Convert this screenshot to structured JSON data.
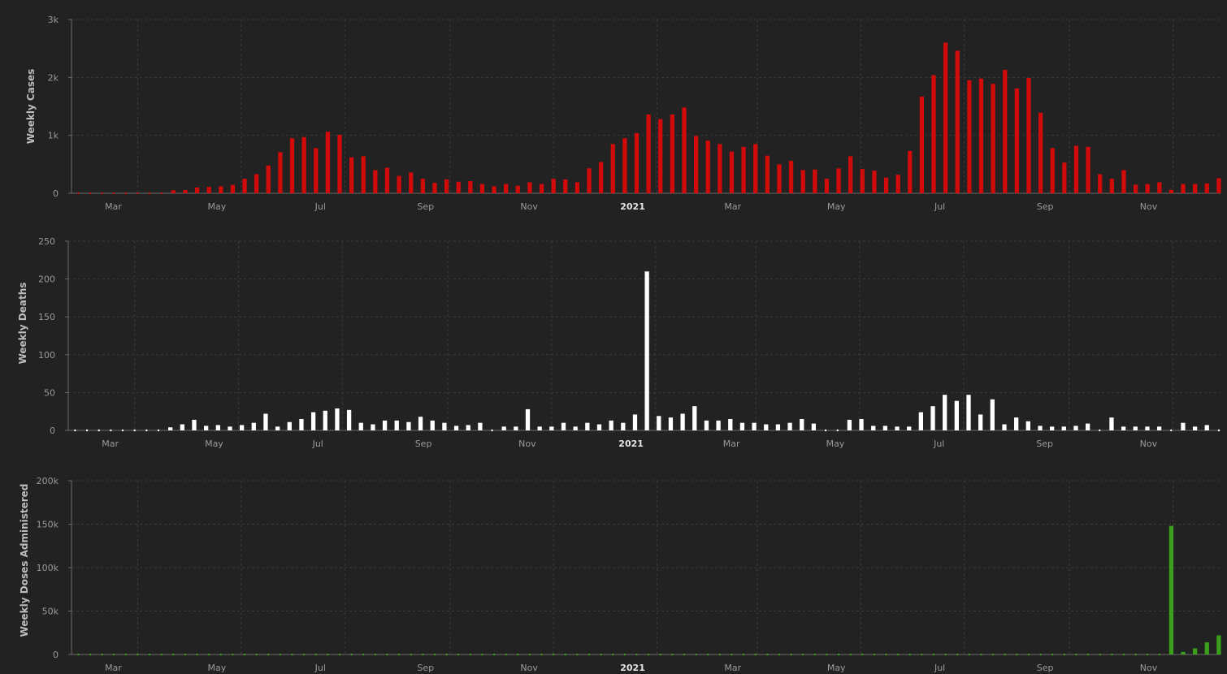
{
  "chart_data": [
    {
      "type": "bar",
      "ylabel": "Weekly Cases",
      "ylim": [
        0,
        3000
      ],
      "yticks": [
        0,
        1000,
        2000,
        3000
      ],
      "ytick_labels": [
        "0",
        "1k",
        "2k",
        "3k"
      ],
      "color": "#d10a0a",
      "grid": true,
      "x_start": "2020-01-26",
      "x_step_days": 7,
      "xticks": [
        {
          "date": "2020-03-01",
          "label": "Mar"
        },
        {
          "date": "2020-05-01",
          "label": "May"
        },
        {
          "date": "2020-07-01",
          "label": "Jul"
        },
        {
          "date": "2020-09-01",
          "label": "Sep"
        },
        {
          "date": "2020-11-01",
          "label": "Nov"
        },
        {
          "date": "2021-01-01",
          "label": "2021",
          "bold": true
        },
        {
          "date": "2021-03-01",
          "label": "Mar"
        },
        {
          "date": "2021-05-01",
          "label": "May"
        },
        {
          "date": "2021-07-01",
          "label": "Jul"
        },
        {
          "date": "2021-09-01",
          "label": "Sep"
        },
        {
          "date": "2021-11-01",
          "label": "Nov"
        }
      ],
      "values": [
        0,
        0,
        0,
        0,
        0,
        0,
        0,
        0,
        50,
        55,
        100,
        110,
        120,
        145,
        250,
        330,
        480,
        710,
        950,
        970,
        780,
        1060,
        1010,
        620,
        640,
        400,
        440,
        300,
        360,
        250,
        180,
        240,
        200,
        210,
        160,
        120,
        160,
        130,
        190,
        160,
        250,
        240,
        190,
        430,
        540,
        850,
        950,
        1040,
        1360,
        1280,
        1360,
        1480,
        990,
        910,
        850,
        720,
        800,
        850,
        650,
        500,
        560,
        400,
        410,
        250,
        430,
        640,
        420,
        390,
        270,
        320,
        730,
        1670,
        2040,
        2600,
        2460,
        1950,
        1980,
        1890,
        2130,
        1810,
        1990,
        1390,
        780,
        530,
        820,
        800,
        330,
        250,
        400,
        150,
        160,
        190,
        60,
        160,
        160,
        170,
        260
      ]
    },
    {
      "type": "bar",
      "ylabel": "Weekly Deaths",
      "ylim": [
        0,
        250
      ],
      "yticks": [
        0,
        50,
        100,
        150,
        200,
        250
      ],
      "ytick_labels": [
        "0",
        "50",
        "100",
        "150",
        "200",
        "250"
      ],
      "color": "#ffffff",
      "grid": true,
      "x_start": "2020-01-26",
      "x_step_days": 7,
      "xticks": [
        {
          "date": "2020-03-01",
          "label": "Mar"
        },
        {
          "date": "2020-05-01",
          "label": "May"
        },
        {
          "date": "2020-07-01",
          "label": "Jul"
        },
        {
          "date": "2020-09-01",
          "label": "Sep"
        },
        {
          "date": "2020-11-01",
          "label": "Nov"
        },
        {
          "date": "2021-01-01",
          "label": "2021",
          "bold": true
        },
        {
          "date": "2021-03-01",
          "label": "Mar"
        },
        {
          "date": "2021-05-01",
          "label": "May"
        },
        {
          "date": "2021-07-01",
          "label": "Jul"
        },
        {
          "date": "2021-09-01",
          "label": "Sep"
        },
        {
          "date": "2021-11-01",
          "label": "Nov"
        }
      ],
      "values": [
        0,
        0,
        0,
        0,
        0,
        0,
        0,
        0,
        4,
        8,
        14,
        6,
        7,
        5,
        7,
        10,
        22,
        5,
        11,
        15,
        24,
        26,
        29,
        27,
        10,
        8,
        13,
        13,
        11,
        18,
        13,
        10,
        6,
        7,
        10,
        0,
        5,
        5,
        28,
        5,
        5,
        10,
        5,
        10,
        8,
        13,
        10,
        21,
        210,
        19,
        17,
        22,
        32,
        13,
        13,
        15,
        10,
        10,
        8,
        8,
        10,
        15,
        9,
        0,
        0,
        14,
        15,
        6,
        6,
        5,
        5,
        24,
        32,
        47,
        39,
        47,
        21,
        41,
        8,
        17,
        12,
        6,
        5,
        5,
        6,
        9,
        0,
        17,
        5,
        5,
        5,
        5,
        0,
        10,
        5,
        7,
        0
      ]
    },
    {
      "type": "bar",
      "ylabel": "Weekly Doses Administered",
      "ylim": [
        0,
        200000
      ],
      "yticks": [
        0,
        50000,
        100000,
        150000,
        200000
      ],
      "ytick_labels": [
        "0",
        "50k",
        "100k",
        "150k",
        "200k"
      ],
      "color": "#3aa01c",
      "grid": true,
      "x_start": "2020-01-26",
      "x_step_days": 7,
      "xticks": [
        {
          "date": "2020-03-01",
          "label": "Mar"
        },
        {
          "date": "2020-05-01",
          "label": "May"
        },
        {
          "date": "2020-07-01",
          "label": "Jul"
        },
        {
          "date": "2020-09-01",
          "label": "Sep"
        },
        {
          "date": "2020-11-01",
          "label": "Nov"
        },
        {
          "date": "2021-01-01",
          "label": "2021",
          "bold": true
        },
        {
          "date": "2021-03-01",
          "label": "Mar"
        },
        {
          "date": "2021-05-01",
          "label": "May"
        },
        {
          "date": "2021-07-01",
          "label": "Jul"
        },
        {
          "date": "2021-09-01",
          "label": "Sep"
        },
        {
          "date": "2021-11-01",
          "label": "Nov"
        }
      ],
      "values": [
        0,
        0,
        0,
        0,
        0,
        0,
        0,
        0,
        0,
        0,
        0,
        0,
        0,
        0,
        0,
        0,
        0,
        0,
        0,
        0,
        0,
        0,
        0,
        0,
        0,
        0,
        0,
        0,
        0,
        0,
        0,
        0,
        0,
        0,
        0,
        0,
        0,
        0,
        0,
        0,
        0,
        0,
        0,
        0,
        0,
        0,
        0,
        0,
        0,
        0,
        0,
        0,
        0,
        0,
        0,
        0,
        0,
        0,
        0,
        0,
        0,
        0,
        0,
        0,
        0,
        0,
        0,
        0,
        0,
        0,
        0,
        0,
        0,
        0,
        0,
        0,
        0,
        0,
        0,
        0,
        0,
        0,
        0,
        0,
        0,
        0,
        0,
        0,
        0,
        0,
        0,
        0,
        148000,
        3000,
        7000,
        14000,
        22000
      ]
    }
  ]
}
